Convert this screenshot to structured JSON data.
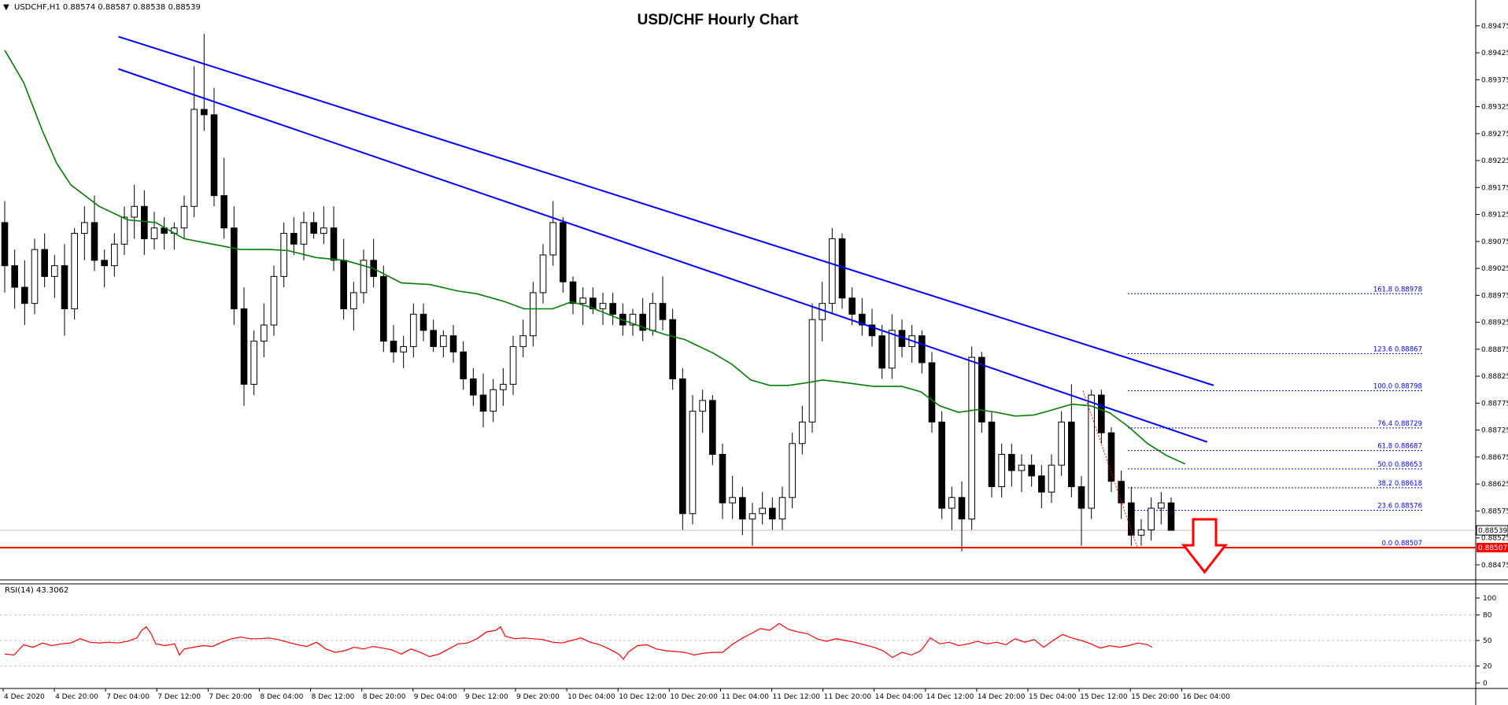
{
  "symbol_header": "USDCHF,H1  0.88574 0.88587 0.88538 0.88539",
  "title": "USD/CHF Hourly Chart",
  "rsi_label": "RSI(14) 43.3062",
  "current_price_tag": "0.88539",
  "support_price_tag": "0.88507",
  "colors": {
    "trendline": "#0000ff",
    "sma": "#008000",
    "support": "#ff0000",
    "rsi": "#ff0000",
    "fib": "#0000ff",
    "arrow": "#ff0000"
  },
  "price_axis_labels": [
    "0.89475",
    "0.89425",
    "0.89375",
    "0.89325",
    "0.89275",
    "0.89225",
    "0.89175",
    "0.89125",
    "0.89075",
    "0.89025",
    "0.88975",
    "0.88925",
    "0.88875",
    "0.88825",
    "0.88775",
    "0.88725",
    "0.88675",
    "0.88625",
    "0.88575",
    "0.88525",
    "0.88475"
  ],
  "rsi_axis_labels": [
    "100",
    "80",
    "50",
    "20",
    "0"
  ],
  "time_axis_labels": [
    "4 Dec 2020",
    "4 Dec 20:00",
    "7 Dec 04:00",
    "7 Dec 12:00",
    "7 Dec 20:00",
    "8 Dec 04:00",
    "8 Dec 12:00",
    "8 Dec 20:00",
    "9 Dec 04:00",
    "9 Dec 12:00",
    "9 Dec 20:00",
    "10 Dec 04:00",
    "10 Dec 12:00",
    "10 Dec 20:00",
    "11 Dec 04:00",
    "11 Dec 12:00",
    "11 Dec 20:00",
    "14 Dec 04:00",
    "14 Dec 12:00",
    "14 Dec 20:00",
    "15 Dec 04:00",
    "15 Dec 12:00",
    "15 Dec 20:00",
    "16 Dec 04:00"
  ],
  "fib_levels": [
    {
      "label": "161.8  0.88978",
      "price": 0.88978
    },
    {
      "label": "123.6  0.88867",
      "price": 0.88867
    },
    {
      "label": "100.0  0.88798",
      "price": 0.88798
    },
    {
      "label": "76.4  0.88729",
      "price": 0.88729
    },
    {
      "label": "61.8  0.88687",
      "price": 0.88687
    },
    {
      "label": "50.0  0.88653",
      "price": 0.88653
    },
    {
      "label": "38.2  0.88618",
      "price": 0.88618
    },
    {
      "label": "23.6  0.88576",
      "price": 0.88576
    },
    {
      "label": "0.0  0.88507",
      "price": 0.88507
    }
  ],
  "chart_data": {
    "type": "candlestick",
    "title": "USD/CHF Hourly Chart",
    "ylim": [
      0.8845,
      0.8952
    ],
    "rsi_ylim": [
      0,
      100
    ],
    "support_level": 0.88507,
    "last_price": 0.88539,
    "trendlines": [
      {
        "from_time": "7 Dec 06:00",
        "from_price": 0.89455,
        "to_time": "16 Dec 09:00",
        "to_price": 0.88808
      },
      {
        "from_time": "7 Dec 06:00",
        "from_price": 0.89395,
        "to_time": "16 Dec 08:00",
        "to_price": 0.88703
      }
    ],
    "sma_path": [
      [
        0,
        0.8943
      ],
      [
        20,
        0.8937
      ],
      [
        40,
        0.8928
      ],
      [
        55,
        0.8922
      ],
      [
        70,
        0.8918
      ],
      [
        100,
        0.8914
      ],
      [
        130,
        0.89115
      ],
      [
        160,
        0.8911
      ],
      [
        190,
        0.8908
      ],
      [
        220,
        0.8907
      ],
      [
        250,
        0.8906
      ],
      [
        280,
        0.8906
      ],
      [
        300,
        0.89058
      ],
      [
        330,
        0.89045
      ],
      [
        360,
        0.8904
      ],
      [
        390,
        0.89025
      ],
      [
        420,
        0.88998
      ],
      [
        450,
        0.88995
      ],
      [
        480,
        0.88983
      ],
      [
        500,
        0.88978
      ],
      [
        530,
        0.88963
      ],
      [
        550,
        0.8895
      ],
      [
        580,
        0.8895
      ],
      [
        600,
        0.88963
      ],
      [
        620,
        0.88953
      ],
      [
        650,
        0.88932
      ],
      [
        680,
        0.88913
      ],
      [
        700,
        0.88902
      ],
      [
        720,
        0.88893
      ],
      [
        750,
        0.88868
      ],
      [
        770,
        0.88847
      ],
      [
        790,
        0.88818
      ],
      [
        810,
        0.88808
      ],
      [
        830,
        0.88808
      ],
      [
        850,
        0.88813
      ],
      [
        866,
        0.88818
      ],
      [
        890,
        0.88813
      ],
      [
        920,
        0.88806
      ],
      [
        950,
        0.88806
      ],
      [
        970,
        0.88796
      ],
      [
        990,
        0.8877
      ],
      [
        1010,
        0.88758
      ],
      [
        1030,
        0.88763
      ],
      [
        1050,
        0.88758
      ],
      [
        1070,
        0.88751
      ],
      [
        1090,
        0.88753
      ],
      [
        1110,
        0.88763
      ],
      [
        1130,
        0.88773
      ],
      [
        1150,
        0.8877
      ],
      [
        1170,
        0.88757
      ],
      [
        1190,
        0.88731
      ],
      [
        1210,
        0.887
      ],
      [
        1230,
        0.88678
      ],
      [
        1250,
        0.88662
      ]
    ],
    "rsi_path": [
      [
        0,
        34
      ],
      [
        10,
        33
      ],
      [
        20,
        45
      ],
      [
        30,
        42
      ],
      [
        40,
        47
      ],
      [
        50,
        44
      ],
      [
        60,
        46
      ],
      [
        70,
        47
      ],
      [
        80,
        52
      ],
      [
        90,
        48
      ],
      [
        100,
        47
      ],
      [
        110,
        48
      ],
      [
        120,
        47
      ],
      [
        130,
        49
      ],
      [
        140,
        53
      ],
      [
        145,
        62
      ],
      [
        150,
        66
      ],
      [
        155,
        58
      ],
      [
        160,
        46
      ],
      [
        170,
        44
      ],
      [
        180,
        46
      ],
      [
        185,
        33
      ],
      [
        190,
        40
      ],
      [
        200,
        42
      ],
      [
        210,
        44
      ],
      [
        220,
        43
      ],
      [
        230,
        48
      ],
      [
        240,
        52
      ],
      [
        250,
        54
      ],
      [
        260,
        52
      ],
      [
        270,
        52
      ],
      [
        280,
        53
      ],
      [
        290,
        51
      ],
      [
        300,
        48
      ],
      [
        310,
        45
      ],
      [
        320,
        43
      ],
      [
        330,
        48
      ],
      [
        340,
        40
      ],
      [
        350,
        36
      ],
      [
        360,
        38
      ],
      [
        370,
        42
      ],
      [
        380,
        40
      ],
      [
        390,
        43
      ],
      [
        400,
        41
      ],
      [
        410,
        39
      ],
      [
        420,
        34
      ],
      [
        430,
        40
      ],
      [
        440,
        36
      ],
      [
        450,
        31
      ],
      [
        460,
        34
      ],
      [
        470,
        40
      ],
      [
        480,
        46
      ],
      [
        490,
        47
      ],
      [
        500,
        52
      ],
      [
        510,
        60
      ],
      [
        520,
        62
      ],
      [
        525,
        66
      ],
      [
        530,
        55
      ],
      [
        540,
        52
      ],
      [
        550,
        53
      ],
      [
        560,
        52
      ],
      [
        570,
        51
      ],
      [
        580,
        48
      ],
      [
        590,
        47
      ],
      [
        600,
        50
      ],
      [
        610,
        53
      ],
      [
        620,
        48
      ],
      [
        630,
        45
      ],
      [
        640,
        40
      ],
      [
        650,
        34
      ],
      [
        655,
        28
      ],
      [
        660,
        36
      ],
      [
        670,
        44
      ],
      [
        680,
        45
      ],
      [
        690,
        40
      ],
      [
        700,
        38
      ],
      [
        710,
        37
      ],
      [
        720,
        36
      ],
      [
        730,
        33
      ],
      [
        740,
        35
      ],
      [
        750,
        36
      ],
      [
        760,
        36
      ],
      [
        770,
        45
      ],
      [
        780,
        52
      ],
      [
        790,
        58
      ],
      [
        800,
        64
      ],
      [
        810,
        62
      ],
      [
        820,
        70
      ],
      [
        830,
        63
      ],
      [
        840,
        60
      ],
      [
        850,
        58
      ],
      [
        860,
        52
      ],
      [
        870,
        49
      ],
      [
        880,
        52
      ],
      [
        890,
        50
      ],
      [
        900,
        48
      ],
      [
        910,
        45
      ],
      [
        920,
        42
      ],
      [
        930,
        38
      ],
      [
        940,
        30
      ],
      [
        950,
        36
      ],
      [
        960,
        33
      ],
      [
        970,
        38
      ],
      [
        980,
        53
      ],
      [
        990,
        46
      ],
      [
        1000,
        48
      ],
      [
        1010,
        44
      ],
      [
        1020,
        46
      ],
      [
        1030,
        49
      ],
      [
        1040,
        46
      ],
      [
        1050,
        48
      ],
      [
        1060,
        45
      ],
      [
        1070,
        52
      ],
      [
        1080,
        48
      ],
      [
        1090,
        51
      ],
      [
        1100,
        42
      ],
      [
        1110,
        50
      ],
      [
        1120,
        57
      ],
      [
        1130,
        53
      ],
      [
        1140,
        50
      ],
      [
        1150,
        46
      ],
      [
        1160,
        41
      ],
      [
        1170,
        44
      ],
      [
        1180,
        42
      ],
      [
        1190,
        44
      ],
      [
        1200,
        47
      ],
      [
        1210,
        45
      ],
      [
        1215,
        42
      ]
    ],
    "candles": [
      [
        0.8911,
        0.8915,
        0.8898,
        0.8903
      ],
      [
        0.8903,
        0.8906,
        0.8895,
        0.8899
      ],
      [
        0.8899,
        0.8904,
        0.8892,
        0.8896
      ],
      [
        0.8896,
        0.8908,
        0.8894,
        0.8906
      ],
      [
        0.8906,
        0.8909,
        0.8899,
        0.8901
      ],
      [
        0.8901,
        0.8905,
        0.8897,
        0.8903
      ],
      [
        0.8903,
        0.8907,
        0.889,
        0.8895
      ],
      [
        0.8895,
        0.891,
        0.8893,
        0.8909
      ],
      [
        0.8909,
        0.8914,
        0.8904,
        0.8911
      ],
      [
        0.8911,
        0.8916,
        0.8902,
        0.8904
      ],
      [
        0.8904,
        0.8906,
        0.8899,
        0.8903
      ],
      [
        0.8903,
        0.8909,
        0.8901,
        0.8907
      ],
      [
        0.8907,
        0.8914,
        0.8905,
        0.8912
      ],
      [
        0.8912,
        0.8918,
        0.8908,
        0.8914
      ],
      [
        0.8914,
        0.8917,
        0.8905,
        0.8908
      ],
      [
        0.8908,
        0.8913,
        0.8906,
        0.891
      ],
      [
        0.891,
        0.8912,
        0.8906,
        0.8909
      ],
      [
        0.8909,
        0.8911,
        0.8906,
        0.891
      ],
      [
        0.891,
        0.8916,
        0.8908,
        0.8914
      ],
      [
        0.8914,
        0.894,
        0.8912,
        0.8932
      ],
      [
        0.8932,
        0.8946,
        0.8928,
        0.8931
      ],
      [
        0.8931,
        0.8936,
        0.8914,
        0.8916
      ],
      [
        0.8916,
        0.8923,
        0.8908,
        0.891
      ],
      [
        0.891,
        0.8914,
        0.8892,
        0.8895
      ],
      [
        0.8895,
        0.8899,
        0.8877,
        0.8881
      ],
      [
        0.8881,
        0.8891,
        0.8879,
        0.8889
      ],
      [
        0.8889,
        0.8896,
        0.8886,
        0.8892
      ],
      [
        0.8892,
        0.8903,
        0.889,
        0.8901
      ],
      [
        0.8901,
        0.8911,
        0.8899,
        0.8909
      ],
      [
        0.8909,
        0.8912,
        0.8905,
        0.8907
      ],
      [
        0.8907,
        0.8913,
        0.8904,
        0.8911
      ],
      [
        0.8911,
        0.8913,
        0.8908,
        0.8909
      ],
      [
        0.8909,
        0.8914,
        0.8907,
        0.891
      ],
      [
        0.891,
        0.8914,
        0.8902,
        0.8904
      ],
      [
        0.8904,
        0.8908,
        0.8893,
        0.8895
      ],
      [
        0.8895,
        0.89,
        0.8891,
        0.8898
      ],
      [
        0.8898,
        0.8906,
        0.8896,
        0.8904
      ],
      [
        0.8904,
        0.8908,
        0.8899,
        0.8901
      ],
      [
        0.8901,
        0.8903,
        0.8887,
        0.8889
      ],
      [
        0.8889,
        0.8892,
        0.8885,
        0.8887
      ],
      [
        0.8887,
        0.889,
        0.8884,
        0.8888
      ],
      [
        0.8888,
        0.8896,
        0.8886,
        0.8894
      ],
      [
        0.8894,
        0.8896,
        0.8889,
        0.8891
      ],
      [
        0.8891,
        0.8893,
        0.8887,
        0.8888
      ],
      [
        0.8888,
        0.8891,
        0.8886,
        0.889
      ],
      [
        0.889,
        0.8892,
        0.8885,
        0.8887
      ],
      [
        0.8887,
        0.8889,
        0.888,
        0.8882
      ],
      [
        0.8882,
        0.8884,
        0.8877,
        0.8879
      ],
      [
        0.8879,
        0.8883,
        0.8873,
        0.8876
      ],
      [
        0.8876,
        0.8882,
        0.8874,
        0.888
      ],
      [
        0.888,
        0.8884,
        0.8877,
        0.8881
      ],
      [
        0.8881,
        0.889,
        0.8879,
        0.8888
      ],
      [
        0.8888,
        0.8893,
        0.8886,
        0.889
      ],
      [
        0.889,
        0.89,
        0.8888,
        0.8898
      ],
      [
        0.8898,
        0.8907,
        0.8896,
        0.8905
      ],
      [
        0.8905,
        0.8915,
        0.8903,
        0.8911
      ],
      [
        0.8911,
        0.8912,
        0.8898,
        0.89
      ],
      [
        0.89,
        0.8901,
        0.8894,
        0.8896
      ],
      [
        0.8896,
        0.8899,
        0.8892,
        0.8897
      ],
      [
        0.8897,
        0.8899,
        0.8894,
        0.8895
      ],
      [
        0.8895,
        0.8898,
        0.8892,
        0.8896
      ],
      [
        0.8896,
        0.8898,
        0.8892,
        0.8894
      ],
      [
        0.8894,
        0.8896,
        0.889,
        0.8892
      ],
      [
        0.8892,
        0.8895,
        0.889,
        0.8894
      ],
      [
        0.8894,
        0.8897,
        0.8889,
        0.8891
      ],
      [
        0.8891,
        0.8898,
        0.889,
        0.8896
      ],
      [
        0.8896,
        0.8901,
        0.8891,
        0.8893
      ],
      [
        0.8893,
        0.8895,
        0.888,
        0.8882
      ],
      [
        0.8882,
        0.8884,
        0.8854,
        0.8857
      ],
      [
        0.8857,
        0.8879,
        0.8855,
        0.8876
      ],
      [
        0.8876,
        0.888,
        0.8872,
        0.8878
      ],
      [
        0.8878,
        0.8879,
        0.8866,
        0.8868
      ],
      [
        0.8868,
        0.887,
        0.8856,
        0.8859
      ],
      [
        0.8859,
        0.8864,
        0.8856,
        0.886
      ],
      [
        0.886,
        0.8862,
        0.8853,
        0.8856
      ],
      [
        0.8856,
        0.8859,
        0.8851,
        0.8857
      ],
      [
        0.8857,
        0.8861,
        0.8855,
        0.8858
      ],
      [
        0.8858,
        0.886,
        0.8854,
        0.8856
      ],
      [
        0.8856,
        0.8862,
        0.8854,
        0.886
      ],
      [
        0.886,
        0.8872,
        0.8858,
        0.887
      ],
      [
        0.887,
        0.8877,
        0.8868,
        0.8874
      ],
      [
        0.8874,
        0.8896,
        0.8872,
        0.8893
      ],
      [
        0.8893,
        0.89,
        0.8889,
        0.8896
      ],
      [
        0.8896,
        0.891,
        0.8894,
        0.8908
      ],
      [
        0.8908,
        0.8909,
        0.8895,
        0.8897
      ],
      [
        0.8897,
        0.8899,
        0.8892,
        0.8894
      ],
      [
        0.8894,
        0.8897,
        0.889,
        0.8892
      ],
      [
        0.8892,
        0.8895,
        0.8888,
        0.889
      ],
      [
        0.889,
        0.8892,
        0.8882,
        0.8884
      ],
      [
        0.8884,
        0.8894,
        0.8882,
        0.8891
      ],
      [
        0.8891,
        0.8893,
        0.8886,
        0.8888
      ],
      [
        0.8888,
        0.8892,
        0.8885,
        0.889
      ],
      [
        0.889,
        0.8891,
        0.8883,
        0.8885
      ],
      [
        0.8885,
        0.8887,
        0.8872,
        0.8874
      ],
      [
        0.8874,
        0.8876,
        0.8856,
        0.8858
      ],
      [
        0.8858,
        0.8862,
        0.8854,
        0.886
      ],
      [
        0.886,
        0.8863,
        0.885,
        0.8856
      ],
      [
        0.8856,
        0.8888,
        0.8854,
        0.8886
      ],
      [
        0.8886,
        0.8887,
        0.8872,
        0.8874
      ],
      [
        0.8874,
        0.8876,
        0.886,
        0.8862
      ],
      [
        0.8862,
        0.887,
        0.886,
        0.8868
      ],
      [
        0.8868,
        0.887,
        0.8862,
        0.8865
      ],
      [
        0.8865,
        0.8868,
        0.8861,
        0.8866
      ],
      [
        0.8866,
        0.8868,
        0.8862,
        0.8864
      ],
      [
        0.8864,
        0.8866,
        0.8858,
        0.8861
      ],
      [
        0.8861,
        0.8868,
        0.8859,
        0.8866
      ],
      [
        0.8866,
        0.8876,
        0.8864,
        0.8874
      ],
      [
        0.8874,
        0.8881,
        0.886,
        0.8862
      ],
      [
        0.8862,
        0.8864,
        0.8851,
        0.8858
      ],
      [
        0.8858,
        0.888,
        0.8856,
        0.8879
      ],
      [
        0.8879,
        0.888,
        0.887,
        0.8872
      ],
      [
        0.8872,
        0.8873,
        0.8861,
        0.8863
      ],
      [
        0.8863,
        0.8865,
        0.8856,
        0.8859
      ],
      [
        0.8859,
        0.8862,
        0.8851,
        0.8853
      ],
      [
        0.8853,
        0.8856,
        0.8851,
        0.8854
      ],
      [
        0.8854,
        0.886,
        0.8852,
        0.8858
      ],
      [
        0.8858,
        0.8861,
        0.8855,
        0.8859
      ],
      [
        0.8859,
        0.886,
        0.88539,
        0.88539
      ]
    ]
  }
}
